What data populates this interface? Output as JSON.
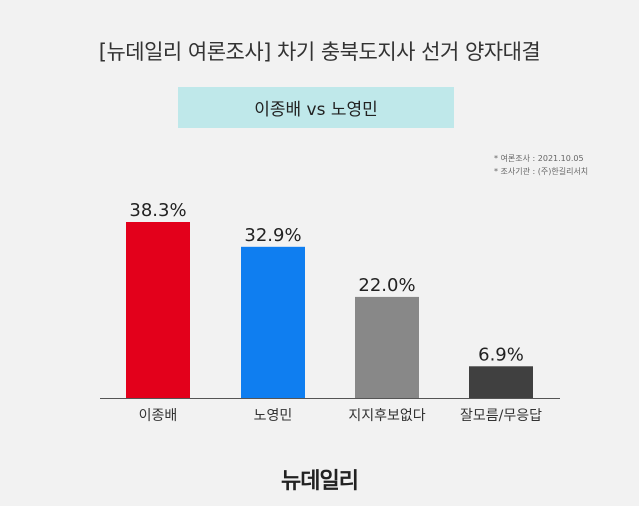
{
  "header": {
    "title": "[뉴데일리 여론조사]  차기 충북도지사 선거 양자대결",
    "subtitle": "이종배  vs 노영민"
  },
  "notes": [
    "* 여론조사 : 2021.10.05",
    "* 조사기관 : (주)한길리서치"
  ],
  "footer": {
    "logo_text": "뉴데일리"
  },
  "colors": {
    "background": "#f2f2f2",
    "subtitle_box": "#bfe8ea",
    "axis": "#555555"
  },
  "chart_data": {
    "type": "bar",
    "title": "[뉴데일리 여론조사]  차기 충북도지사 선거 양자대결",
    "categories": [
      "이종배",
      "노영민",
      "지지후보없다",
      "잘모름/무응답"
    ],
    "values": [
      38.3,
      32.9,
      22.0,
      6.9
    ],
    "value_labels": [
      "38.3%",
      "32.9%",
      "22.0%",
      "6.9%"
    ],
    "colors": [
      "#e3001b",
      "#0f7ef0",
      "#888888",
      "#404040"
    ],
    "ylim": [
      0,
      38.3
    ],
    "grid": false,
    "legend": "none",
    "xlabel": "",
    "ylabel": ""
  }
}
